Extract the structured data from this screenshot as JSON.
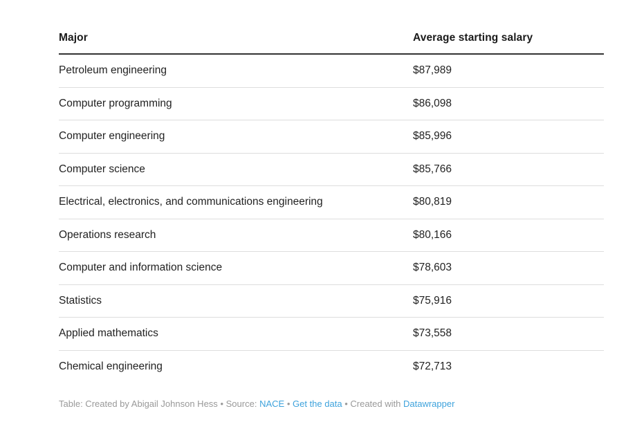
{
  "table": {
    "columns": {
      "major": "Major",
      "salary": "Average starting salary"
    },
    "rows": [
      {
        "major": "Petroleum engineering",
        "salary": "$87,989"
      },
      {
        "major": "Computer programming",
        "salary": "$86,098"
      },
      {
        "major": "Computer engineering",
        "salary": "$85,996"
      },
      {
        "major": "Computer science",
        "salary": "$85,766"
      },
      {
        "major": "Electrical, electronics, and communications engineering",
        "salary": "$80,819"
      },
      {
        "major": "Operations research",
        "salary": "$80,166"
      },
      {
        "major": "Computer and information science",
        "salary": "$78,603"
      },
      {
        "major": "Statistics",
        "salary": "$75,916"
      },
      {
        "major": "Applied mathematics",
        "salary": "$73,558"
      },
      {
        "major": "Chemical engineering",
        "salary": "$72,713"
      }
    ]
  },
  "footer": {
    "table_credit": "Table: Created by Abigail Johnson Hess",
    "bullet": "•",
    "source_label": "Source:",
    "created_with_label": "Created with",
    "links": {
      "nace": "NACE",
      "get_the_data": "Get the data",
      "datawrapper": "Datawrapper"
    }
  },
  "colors": {
    "header_text": "#1a1a1a",
    "body_text": "#222222",
    "header_rule": "#333333",
    "row_separator": "#dddddd",
    "footer_text": "#999999",
    "link_blue": "#3da2dc",
    "background": "#ffffff"
  },
  "chart_data": {
    "type": "table",
    "title": "",
    "columns": [
      "Major",
      "Average starting salary"
    ],
    "rows": [
      [
        "Petroleum engineering",
        87989
      ],
      [
        "Computer programming",
        86098
      ],
      [
        "Computer engineering",
        85996
      ],
      [
        "Computer science",
        85766
      ],
      [
        "Electrical, electronics, and communications engineering",
        80819
      ],
      [
        "Operations research",
        80166
      ],
      [
        "Computer and information science",
        78603
      ],
      [
        "Statistics",
        75916
      ],
      [
        "Applied mathematics",
        73558
      ],
      [
        "Chemical engineering",
        72713
      ]
    ],
    "value_format": "USD currency with thousands separator",
    "attribution": "Table: Created by Abigail Johnson Hess • Source: NACE • Get the data • Created with Datawrapper"
  }
}
